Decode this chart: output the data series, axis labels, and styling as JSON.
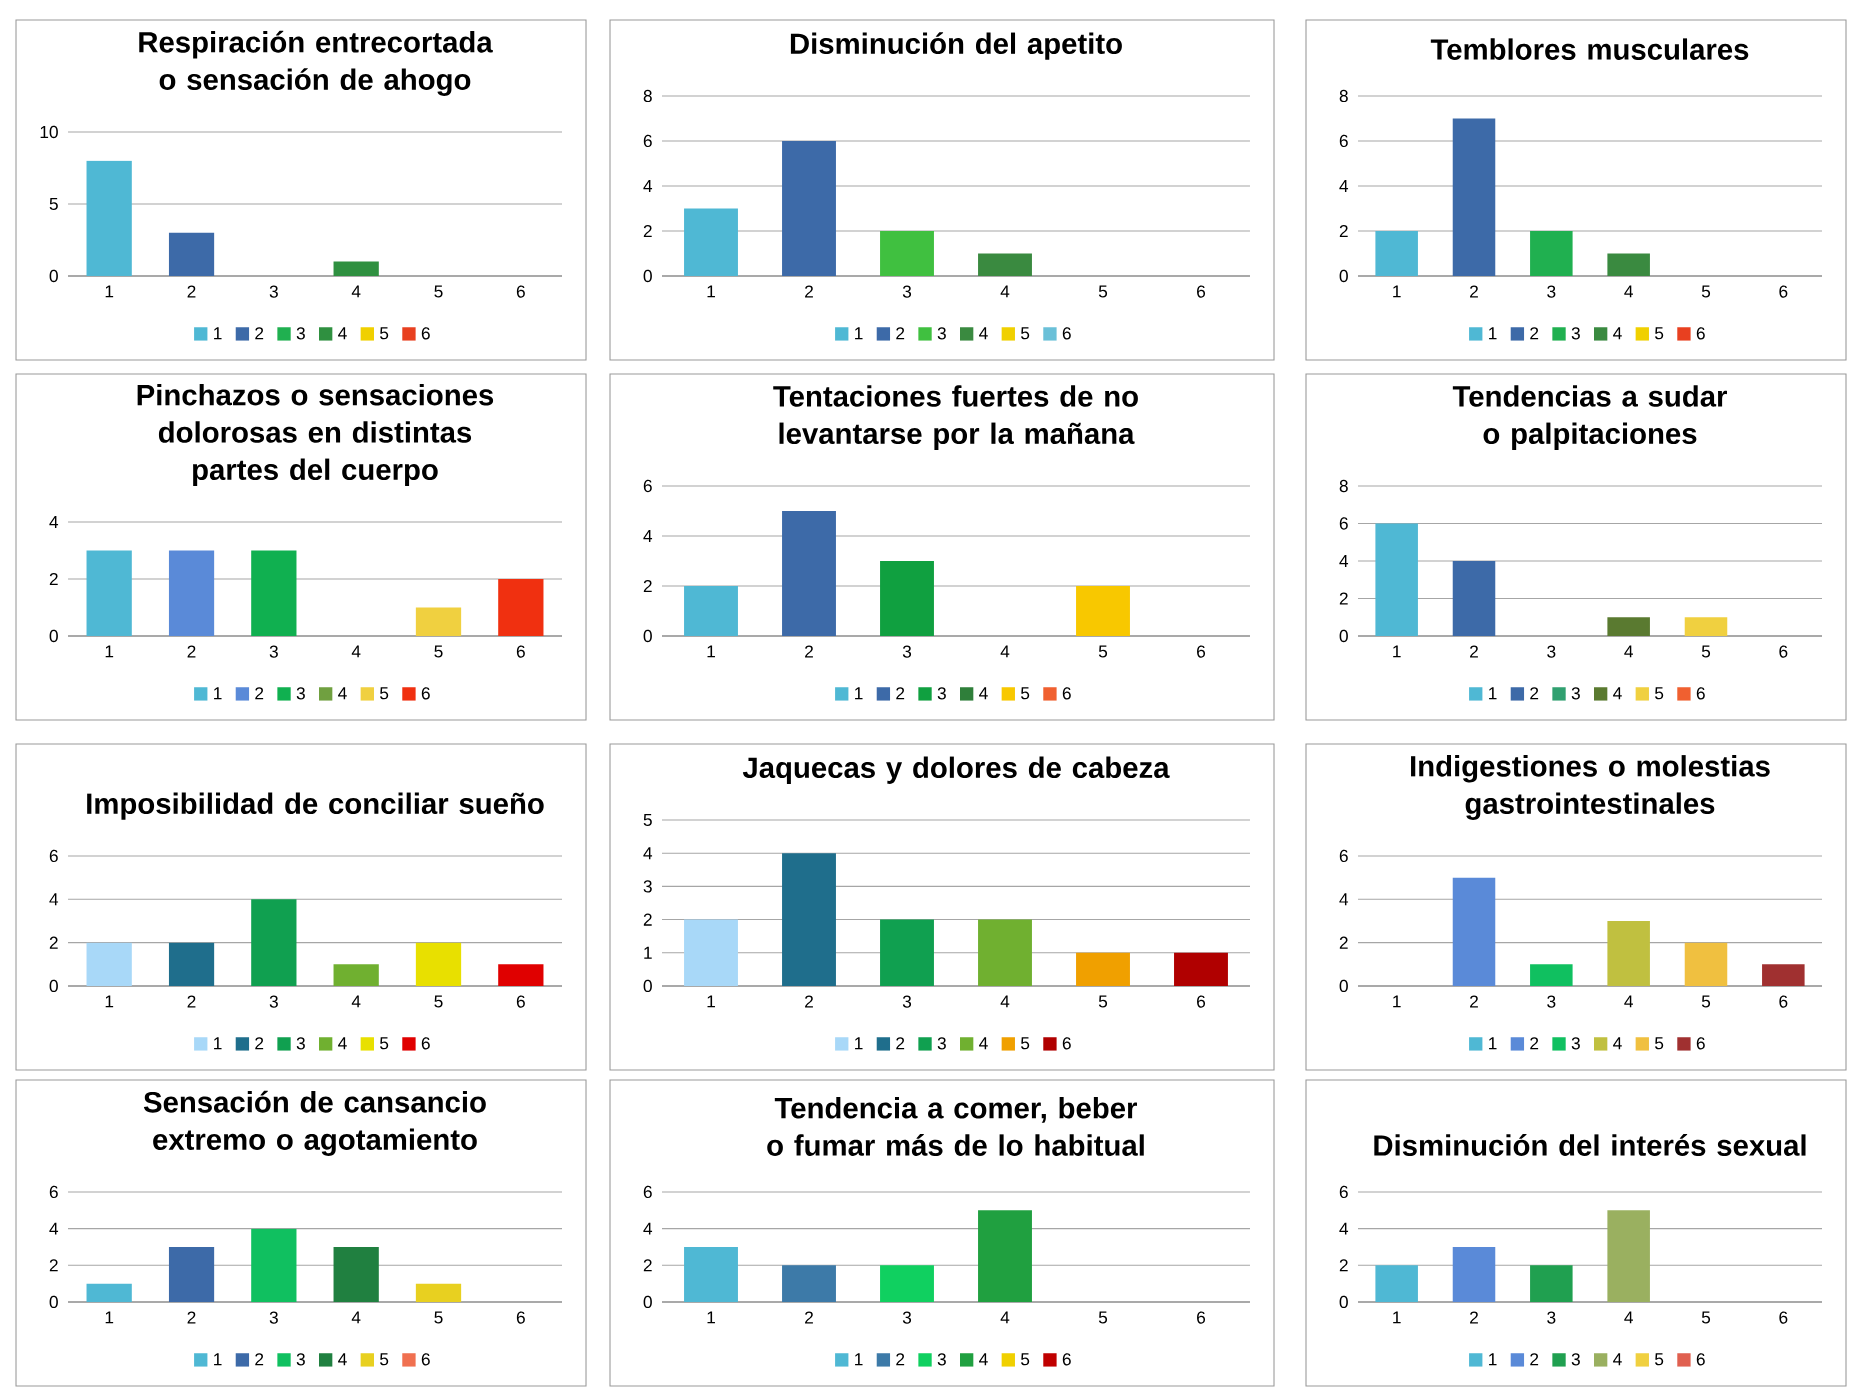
{
  "chart_data": [
    {
      "type": "bar",
      "title": "Respiración entrecortada o sensación de ahogo",
      "categories": [
        "1",
        "2",
        "3",
        "4",
        "5",
        "6"
      ],
      "ylim": [
        0,
        10
      ],
      "yticks": [
        0,
        5,
        10
      ],
      "grid": "y",
      "legend": "bottom",
      "series": [
        {
          "name": "1",
          "color": "#4fb8d4",
          "values": [
            8,
            null,
            null,
            null,
            null,
            null
          ]
        },
        {
          "name": "2",
          "color": "#3d6aa8",
          "values": [
            null,
            3,
            null,
            null,
            null,
            null
          ]
        },
        {
          "name": "3",
          "color": "#20b050",
          "values": [
            null,
            null,
            0,
            null,
            null,
            null
          ]
        },
        {
          "name": "4",
          "color": "#2f9040",
          "values": [
            null,
            null,
            null,
            1,
            null,
            null
          ]
        },
        {
          "name": "5",
          "color": "#f0d000",
          "values": [
            null,
            null,
            null,
            null,
            0,
            null
          ]
        },
        {
          "name": "6",
          "color": "#e84020",
          "values": [
            null,
            null,
            null,
            null,
            null,
            0
          ]
        }
      ]
    },
    {
      "type": "bar",
      "title": "Disminución del apetito",
      "categories": [
        "1",
        "2",
        "3",
        "4",
        "5",
        "6"
      ],
      "ylim": [
        0,
        8
      ],
      "yticks": [
        0,
        2,
        4,
        6,
        8
      ],
      "grid": "y",
      "legend": "bottom",
      "series": [
        {
          "name": "1",
          "color": "#4fb8d4",
          "values": [
            3,
            null,
            null,
            null,
            null,
            null
          ]
        },
        {
          "name": "2",
          "color": "#3d6aa8",
          "values": [
            null,
            6,
            null,
            null,
            null,
            null
          ]
        },
        {
          "name": "3",
          "color": "#40c040",
          "values": [
            null,
            null,
            2,
            null,
            null,
            null
          ]
        },
        {
          "name": "4",
          "color": "#3a8a40",
          "values": [
            null,
            null,
            null,
            1,
            null,
            null
          ]
        },
        {
          "name": "5",
          "color": "#f0d000",
          "values": [
            null,
            null,
            null,
            null,
            0,
            null
          ]
        },
        {
          "name": "6",
          "color": "#6ac0d8",
          "values": [
            null,
            null,
            null,
            null,
            null,
            0
          ]
        }
      ]
    },
    {
      "type": "bar",
      "title": "Temblores musculares",
      "categories": [
        "1",
        "2",
        "3",
        "4",
        "5",
        "6"
      ],
      "ylim": [
        0,
        8
      ],
      "yticks": [
        0,
        2,
        4,
        6,
        8
      ],
      "grid": "y",
      "legend": "bottom",
      "series": [
        {
          "name": "1",
          "color": "#4fb8d4",
          "values": [
            2,
            null,
            null,
            null,
            null,
            null
          ]
        },
        {
          "name": "2",
          "color": "#3d6aa8",
          "values": [
            null,
            7,
            null,
            null,
            null,
            null
          ]
        },
        {
          "name": "3",
          "color": "#20b050",
          "values": [
            null,
            null,
            2,
            null,
            null,
            null
          ]
        },
        {
          "name": "4",
          "color": "#3a8a40",
          "values": [
            null,
            null,
            null,
            1,
            null,
            null
          ]
        },
        {
          "name": "5",
          "color": "#f0d000",
          "values": [
            null,
            null,
            null,
            null,
            0,
            null
          ]
        },
        {
          "name": "6",
          "color": "#e84020",
          "values": [
            null,
            null,
            null,
            null,
            null,
            0
          ]
        }
      ]
    },
    {
      "type": "bar",
      "title": "Pinchazos o sensaciones dolorosas en distintas partes del cuerpo",
      "categories": [
        "1",
        "2",
        "3",
        "4",
        "5",
        "6"
      ],
      "ylim": [
        0,
        4
      ],
      "yticks": [
        0,
        2,
        4
      ],
      "grid": "y",
      "legend": "bottom",
      "series": [
        {
          "name": "1",
          "color": "#4fb8d4",
          "values": [
            3,
            null,
            null,
            null,
            null,
            null
          ]
        },
        {
          "name": "2",
          "color": "#5a8ad8",
          "values": [
            null,
            3,
            null,
            null,
            null,
            null
          ]
        },
        {
          "name": "3",
          "color": "#10b050",
          "values": [
            null,
            null,
            3,
            null,
            null,
            null
          ]
        },
        {
          "name": "4",
          "color": "#70a040",
          "values": [
            null,
            null,
            null,
            0,
            null,
            null
          ]
        },
        {
          "name": "5",
          "color": "#f0d040",
          "values": [
            null,
            null,
            null,
            null,
            1,
            null
          ]
        },
        {
          "name": "6",
          "color": "#f03010",
          "values": [
            null,
            null,
            null,
            null,
            null,
            2
          ]
        }
      ]
    },
    {
      "type": "bar",
      "title": "Tentaciones fuertes de no levantarse por la mañana",
      "categories": [
        "1",
        "2",
        "3",
        "4",
        "5",
        "6"
      ],
      "ylim": [
        0,
        6
      ],
      "yticks": [
        0,
        2,
        4,
        6
      ],
      "grid": "y",
      "legend": "bottom",
      "series": [
        {
          "name": "1",
          "color": "#4fb8d4",
          "values": [
            2,
            null,
            null,
            null,
            null,
            null
          ]
        },
        {
          "name": "2",
          "color": "#3d6aa8",
          "values": [
            null,
            5,
            null,
            null,
            null,
            null
          ]
        },
        {
          "name": "3",
          "color": "#10a040",
          "values": [
            null,
            null,
            3,
            null,
            null,
            null
          ]
        },
        {
          "name": "4",
          "color": "#2f7f3a",
          "values": [
            null,
            null,
            null,
            0,
            null,
            null
          ]
        },
        {
          "name": "5",
          "color": "#f8c800",
          "values": [
            null,
            null,
            null,
            null,
            2,
            null
          ]
        },
        {
          "name": "6",
          "color": "#f06030",
          "values": [
            null,
            null,
            null,
            null,
            null,
            0
          ]
        }
      ]
    },
    {
      "type": "bar",
      "title": "Tendencias a sudar o palpitaciones",
      "categories": [
        "1",
        "2",
        "3",
        "4",
        "5",
        "6"
      ],
      "ylim": [
        0,
        8
      ],
      "yticks": [
        0,
        2,
        4,
        6,
        8
      ],
      "grid": "y",
      "legend": "bottom",
      "series": [
        {
          "name": "1",
          "color": "#4fb8d4",
          "values": [
            6,
            null,
            null,
            null,
            null,
            null
          ]
        },
        {
          "name": "2",
          "color": "#3d6aa8",
          "values": [
            null,
            4,
            null,
            null,
            null,
            null
          ]
        },
        {
          "name": "3",
          "color": "#30a070",
          "values": [
            null,
            null,
            0,
            null,
            null,
            null
          ]
        },
        {
          "name": "4",
          "color": "#5a7a30",
          "values": [
            null,
            null,
            null,
            1,
            null,
            null
          ]
        },
        {
          "name": "5",
          "color": "#f0d040",
          "values": [
            null,
            null,
            null,
            null,
            1,
            null
          ]
        },
        {
          "name": "6",
          "color": "#f06030",
          "values": [
            null,
            null,
            null,
            null,
            null,
            0
          ]
        }
      ]
    },
    {
      "type": "bar",
      "title": "Imposibilidad de conciliar sueño",
      "categories": [
        "1",
        "2",
        "3",
        "4",
        "5",
        "6"
      ],
      "ylim": [
        0,
        6
      ],
      "yticks": [
        0,
        2,
        4,
        6
      ],
      "grid": "y",
      "legend": "bottom",
      "series": [
        {
          "name": "1",
          "color": "#a8d8f8",
          "values": [
            2,
            null,
            null,
            null,
            null,
            null
          ]
        },
        {
          "name": "2",
          "color": "#1f6e8c",
          "values": [
            null,
            2,
            null,
            null,
            null,
            null
          ]
        },
        {
          "name": "3",
          "color": "#10a050",
          "values": [
            null,
            null,
            4,
            null,
            null,
            null
          ]
        },
        {
          "name": "4",
          "color": "#70b030",
          "values": [
            null,
            null,
            null,
            1,
            null,
            null
          ]
        },
        {
          "name": "5",
          "color": "#e8e000",
          "values": [
            null,
            null,
            null,
            null,
            2,
            null
          ]
        },
        {
          "name": "6",
          "color": "#e00000",
          "values": [
            null,
            null,
            null,
            null,
            null,
            1
          ]
        }
      ]
    },
    {
      "type": "bar",
      "title": "Jaquecas y dolores de cabeza",
      "categories": [
        "1",
        "2",
        "3",
        "4",
        "5",
        "6"
      ],
      "ylim": [
        0,
        5
      ],
      "yticks": [
        0,
        1,
        2,
        3,
        4,
        5
      ],
      "grid": "y",
      "legend": "bottom",
      "series": [
        {
          "name": "1",
          "color": "#a8d8f8",
          "values": [
            2,
            null,
            null,
            null,
            null,
            null
          ]
        },
        {
          "name": "2",
          "color": "#1f6e8c",
          "values": [
            null,
            4,
            null,
            null,
            null,
            null
          ]
        },
        {
          "name": "3",
          "color": "#10a050",
          "values": [
            null,
            null,
            2,
            null,
            null,
            null
          ]
        },
        {
          "name": "4",
          "color": "#70b030",
          "values": [
            null,
            null,
            null,
            2,
            null,
            null
          ]
        },
        {
          "name": "5",
          "color": "#f0a000",
          "values": [
            null,
            null,
            null,
            null,
            1,
            null
          ]
        },
        {
          "name": "6",
          "color": "#b00000",
          "values": [
            null,
            null,
            null,
            null,
            null,
            1
          ]
        }
      ]
    },
    {
      "type": "bar",
      "title": "Indigestiones o molestias gastrointestinales",
      "categories": [
        "1",
        "2",
        "3",
        "4",
        "5",
        "6"
      ],
      "ylim": [
        0,
        6
      ],
      "yticks": [
        0,
        2,
        4,
        6
      ],
      "grid": "y",
      "legend": "bottom",
      "series": [
        {
          "name": "1",
          "color": "#4fb8d4",
          "values": [
            0,
            null,
            null,
            null,
            null,
            null
          ]
        },
        {
          "name": "2",
          "color": "#5a8ad8",
          "values": [
            null,
            5,
            null,
            null,
            null,
            null
          ]
        },
        {
          "name": "3",
          "color": "#10c060",
          "values": [
            null,
            null,
            1,
            null,
            null,
            null
          ]
        },
        {
          "name": "4",
          "color": "#c0c040",
          "values": [
            null,
            null,
            null,
            3,
            null,
            null
          ]
        },
        {
          "name": "5",
          "color": "#f0c040",
          "values": [
            null,
            null,
            null,
            null,
            2,
            null
          ]
        },
        {
          "name": "6",
          "color": "#a03030",
          "values": [
            null,
            null,
            null,
            null,
            null,
            1
          ]
        }
      ]
    },
    {
      "type": "bar",
      "title": "Sensación de cansancio extremo o agotamiento",
      "categories": [
        "1",
        "2",
        "3",
        "4",
        "5",
        "6"
      ],
      "ylim": [
        0,
        6
      ],
      "yticks": [
        0,
        2,
        4,
        6
      ],
      "grid": "y",
      "legend": "bottom",
      "series": [
        {
          "name": "1",
          "color": "#4fb8d4",
          "values": [
            1,
            null,
            null,
            null,
            null,
            null
          ]
        },
        {
          "name": "2",
          "color": "#3d6aa8",
          "values": [
            null,
            3,
            null,
            null,
            null,
            null
          ]
        },
        {
          "name": "3",
          "color": "#10c060",
          "values": [
            null,
            null,
            4,
            null,
            null,
            null
          ]
        },
        {
          "name": "4",
          "color": "#208040",
          "values": [
            null,
            null,
            null,
            3,
            null,
            null
          ]
        },
        {
          "name": "5",
          "color": "#e8d020",
          "values": [
            null,
            null,
            null,
            null,
            1,
            null
          ]
        },
        {
          "name": "6",
          "color": "#f07050",
          "values": [
            null,
            null,
            null,
            null,
            null,
            0
          ]
        }
      ]
    },
    {
      "type": "bar",
      "title": "Tendencia a comer, beber o fumar más de lo habitual",
      "categories": [
        "1",
        "2",
        "3",
        "4",
        "5",
        "6"
      ],
      "ylim": [
        0,
        6
      ],
      "yticks": [
        0,
        2,
        4,
        6
      ],
      "grid": "y",
      "legend": "bottom",
      "series": [
        {
          "name": "1",
          "color": "#4fb8d4",
          "values": [
            3,
            null,
            null,
            null,
            null,
            null
          ]
        },
        {
          "name": "2",
          "color": "#3d7aa8",
          "values": [
            null,
            2,
            null,
            null,
            null,
            null
          ]
        },
        {
          "name": "3",
          "color": "#10d060",
          "values": [
            null,
            null,
            2,
            null,
            null,
            null
          ]
        },
        {
          "name": "4",
          "color": "#20a040",
          "values": [
            null,
            null,
            null,
            5,
            null,
            null
          ]
        },
        {
          "name": "5",
          "color": "#f0d000",
          "values": [
            null,
            null,
            null,
            null,
            0,
            null
          ]
        },
        {
          "name": "6",
          "color": "#c00000",
          "values": [
            null,
            null,
            null,
            null,
            null,
            0
          ]
        }
      ]
    },
    {
      "type": "bar",
      "title": "Disminución del interés sexual",
      "categories": [
        "1",
        "2",
        "3",
        "4",
        "5",
        "6"
      ],
      "ylim": [
        0,
        6
      ],
      "yticks": [
        0,
        2,
        4,
        6
      ],
      "grid": "y",
      "legend": "bottom",
      "series": [
        {
          "name": "1",
          "color": "#4fb8d4",
          "values": [
            2,
            null,
            null,
            null,
            null,
            null
          ]
        },
        {
          "name": "2",
          "color": "#5a8ad8",
          "values": [
            null,
            3,
            null,
            null,
            null,
            null
          ]
        },
        {
          "name": "3",
          "color": "#20a050",
          "values": [
            null,
            null,
            2,
            null,
            null,
            null
          ]
        },
        {
          "name": "4",
          "color": "#9ab060",
          "values": [
            null,
            null,
            null,
            5,
            null,
            null
          ]
        },
        {
          "name": "5",
          "color": "#f0d040",
          "values": [
            null,
            null,
            null,
            null,
            0,
            null
          ]
        },
        {
          "name": "6",
          "color": "#e06050",
          "values": [
            null,
            null,
            null,
            null,
            null,
            0
          ]
        }
      ]
    }
  ]
}
